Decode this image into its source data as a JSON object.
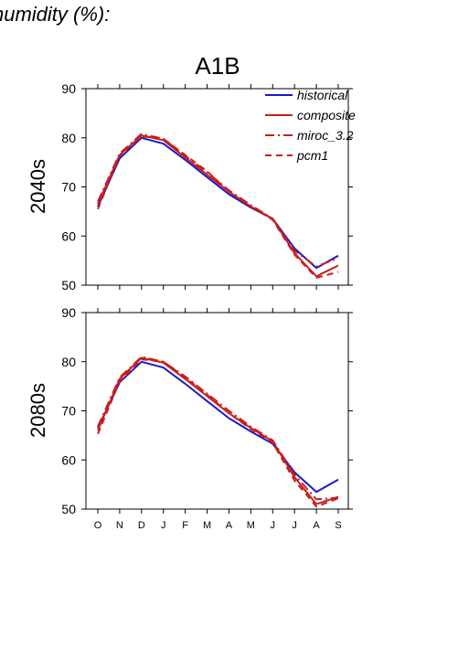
{
  "header": {
    "text": "humidity (%):"
  },
  "chart_data": [
    {
      "type": "line",
      "title": "A1B",
      "ylabel": "2040s",
      "x": [
        "O",
        "N",
        "D",
        "J",
        "F",
        "M",
        "A",
        "M",
        "J",
        "J",
        "A",
        "S"
      ],
      "ylim": [
        50,
        90
      ],
      "yticks": [
        50,
        60,
        70,
        80,
        90
      ],
      "legend": {
        "placement": "top-right",
        "entries": [
          "historical",
          "composite",
          "miroc_3.2",
          "pcm1"
        ]
      },
      "series": [
        {
          "name": "historical",
          "color": "#1a1ac8",
          "dash": "solid",
          "values": [
            66.0,
            75.8,
            80.0,
            78.8,
            75.5,
            72.0,
            68.5,
            65.8,
            63.5,
            57.5,
            53.5,
            56.0
          ]
        },
        {
          "name": "composite",
          "color": "#c81e1e",
          "dash": "solid",
          "values": [
            66.5,
            76.5,
            80.5,
            79.5,
            76.0,
            72.5,
            69.0,
            66.0,
            63.5,
            56.5,
            51.8,
            54.0
          ]
        },
        {
          "name": "miroc_3.2",
          "color": "#c81e1e",
          "dash": "dashdot",
          "values": [
            67.0,
            76.8,
            80.8,
            79.8,
            76.3,
            73.0,
            69.3,
            66.3,
            63.5,
            57.0,
            53.8,
            55.5
          ]
        },
        {
          "name": "pcm1",
          "color": "#c81e1e",
          "dash": "dash",
          "values": [
            65.5,
            76.3,
            80.3,
            79.8,
            76.5,
            73.2,
            69.0,
            66.0,
            63.3,
            56.2,
            51.5,
            52.7
          ]
        }
      ]
    },
    {
      "type": "line",
      "title": "",
      "ylabel": "2080s",
      "xlabel": "",
      "x": [
        "O",
        "N",
        "D",
        "J",
        "F",
        "M",
        "A",
        "M",
        "J",
        "J",
        "A",
        "S"
      ],
      "ylim": [
        50,
        90
      ],
      "yticks": [
        50,
        60,
        70,
        80,
        90
      ],
      "series": [
        {
          "name": "historical",
          "color": "#1a1ac8",
          "dash": "solid",
          "values": [
            66.5,
            75.8,
            80.0,
            78.8,
            75.5,
            72.0,
            68.5,
            65.8,
            63.3,
            57.5,
            53.5,
            56.0
          ]
        },
        {
          "name": "composite",
          "color": "#c81e1e",
          "dash": "solid",
          "values": [
            66.0,
            76.5,
            80.8,
            79.8,
            76.5,
            73.0,
            69.5,
            66.5,
            63.8,
            56.5,
            51.0,
            52.5
          ]
        },
        {
          "name": "miroc_3.2",
          "color": "#c81e1e",
          "dash": "dashdot",
          "values": [
            66.8,
            76.8,
            81.0,
            80.0,
            77.0,
            73.5,
            70.0,
            66.8,
            64.0,
            57.0,
            52.0,
            52.3
          ]
        },
        {
          "name": "pcm1",
          "color": "#c81e1e",
          "dash": "dash",
          "values": [
            65.3,
            76.0,
            80.5,
            80.0,
            76.8,
            73.3,
            69.5,
            66.3,
            63.5,
            55.8,
            50.5,
            52.2
          ]
        }
      ]
    }
  ]
}
